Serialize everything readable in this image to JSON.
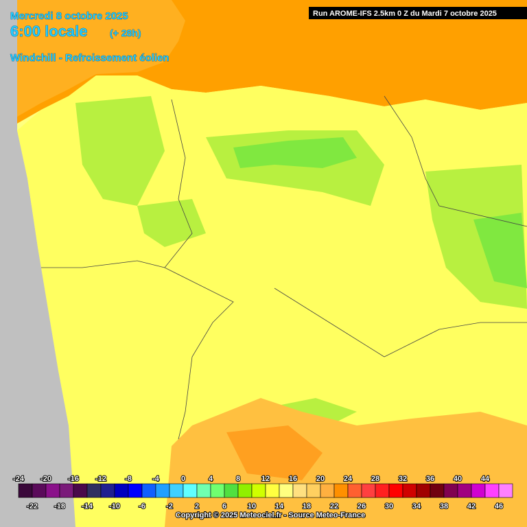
{
  "header": {
    "date": "Mercredi 8 octobre 2025",
    "time": "6:00 locale",
    "lead": "(+ 28h)",
    "parameter": "Windchill - Refroissement éolien",
    "run": "Run AROME-IFS 2.5km 0 Z du Mardi 7 octobre 2025"
  },
  "legend": {
    "labels": [
      -24,
      -22,
      -20,
      -18,
      -16,
      -14,
      -12,
      -10,
      -8,
      -6,
      -4,
      -2,
      0,
      2,
      4,
      6,
      8,
      10,
      12,
      14,
      16,
      18,
      20,
      22,
      24,
      26,
      28,
      30,
      32,
      34,
      36,
      38,
      40,
      42,
      44,
      46
    ],
    "colors": [
      "#3a083a",
      "#5a0a5a",
      "#8a108a",
      "#7a1a7a",
      "#4a0a4a",
      "#303060",
      "#202090",
      "#0000c0",
      "#0000ff",
      "#1060ff",
      "#20a0ff",
      "#40d0ff",
      "#60ffff",
      "#70ffb0",
      "#70ff70",
      "#50e040",
      "#90f000",
      "#d0ff00",
      "#ffff40",
      "#ffff80",
      "#ffe080",
      "#ffd060",
      "#ffb040",
      "#ff9000",
      "#ff6030",
      "#ff4040",
      "#ff2020",
      "#ff0000",
      "#d00000",
      "#a00000",
      "#700010",
      "#800050",
      "#a00080",
      "#d000d0",
      "#ff40ff",
      "#ff80ff"
    ]
  },
  "footer": {
    "copyright": "Copyright © 2025 Meteociel.fr - Source Meteo-France"
  }
}
